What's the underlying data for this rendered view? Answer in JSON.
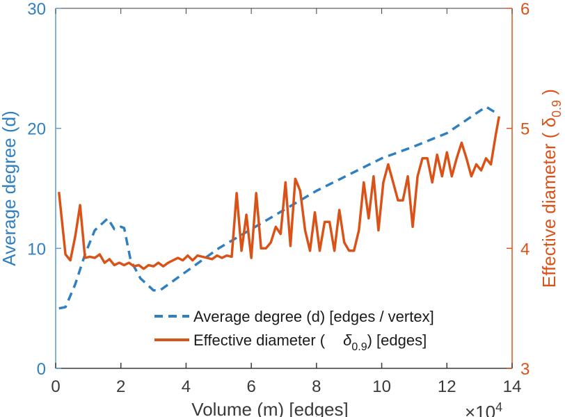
{
  "chart_data": {
    "type": "line",
    "x_multiplier_label": "×10",
    "x_multiplier_exponent": "4",
    "xlabel": "Volume (m) [edges]",
    "ylabel_left": "Average degree (d)",
    "ylabel_right": "Effective diameter ( δ",
    "ylabel_right_sub": "0.9",
    "ylabel_right_end": " )",
    "xlim": [
      0,
      14
    ],
    "ylim_left": [
      0,
      30
    ],
    "ylim_right": [
      3,
      6
    ],
    "x_ticks": [
      0,
      2,
      4,
      6,
      8,
      10,
      12,
      14
    ],
    "y_ticks_left": [
      0,
      10,
      20,
      30
    ],
    "y_ticks_right": [
      3,
      4,
      5,
      6
    ],
    "legend": [
      {
        "label": "Average degree (d) [edges / vertex]",
        "style": "dashed",
        "color": "#2f7fc1"
      },
      {
        "label_pre": "Effective diameter (",
        "label_sym": "δ",
        "label_sub": "0.9",
        "label_post": ") [edges]",
        "style": "solid",
        "color": "#d95319"
      }
    ],
    "series": [
      {
        "name": "Average degree (d) [edges / vertex]",
        "axis": "left",
        "color": "#2f7fc1",
        "style": "dashed",
        "x": [
          0.1,
          0.3,
          0.6,
          0.9,
          1.2,
          1.6,
          1.8,
          2.0,
          2.1,
          2.3,
          2.6,
          3.0,
          3.2,
          5.0,
          8.0,
          10.0,
          11.0,
          12.0,
          13.2,
          13.5
        ],
        "y": [
          5.0,
          5.1,
          7.0,
          9.5,
          11.5,
          12.5,
          11.6,
          11.8,
          11.7,
          9.0,
          7.5,
          6.5,
          6.5,
          10.0,
          14.8,
          17.5,
          18.5,
          19.6,
          21.8,
          21.3
        ]
      },
      {
        "name": "Effective diameter (δ0.9) [edges]",
        "axis": "right",
        "color": "#d95319",
        "style": "solid",
        "x": [
          0.1,
          0.3,
          0.45,
          0.6,
          0.75,
          0.9,
          1.05,
          1.2,
          1.35,
          1.5,
          1.65,
          1.8,
          1.95,
          2.1,
          2.25,
          2.4,
          2.55,
          2.7,
          2.85,
          3.0,
          3.15,
          3.3,
          3.45,
          3.6,
          3.75,
          3.9,
          4.05,
          4.2,
          4.35,
          4.5,
          4.65,
          4.8,
          4.95,
          5.1,
          5.25,
          5.4,
          5.55,
          5.7,
          5.85,
          6.0,
          6.15,
          6.3,
          6.45,
          6.6,
          6.75,
          6.9,
          7.05,
          7.2,
          7.35,
          7.5,
          7.65,
          7.8,
          7.95,
          8.1,
          8.25,
          8.4,
          8.55,
          8.7,
          8.85,
          9.0,
          9.15,
          9.3,
          9.45,
          9.6,
          9.75,
          9.9,
          10.05,
          10.2,
          10.35,
          10.5,
          10.65,
          10.8,
          10.95,
          11.1,
          11.25,
          11.4,
          11.55,
          11.7,
          11.85,
          12.0,
          12.15,
          12.3,
          12.45,
          12.6,
          12.75,
          12.9,
          13.05,
          13.2,
          13.35,
          13.5,
          13.6
        ],
        "y": [
          4.47,
          3.95,
          3.9,
          4.1,
          4.36,
          3.92,
          3.93,
          3.92,
          3.95,
          3.88,
          3.91,
          3.86,
          3.88,
          3.86,
          3.88,
          3.85,
          3.86,
          3.83,
          3.86,
          3.85,
          3.88,
          3.85,
          3.88,
          3.9,
          3.92,
          3.9,
          3.94,
          3.9,
          3.94,
          3.93,
          3.92,
          3.91,
          3.94,
          3.92,
          3.94,
          3.93,
          4.46,
          3.98,
          4.28,
          3.92,
          4.46,
          4.0,
          4.0,
          4.05,
          4.18,
          4.12,
          4.55,
          4.02,
          4.58,
          4.48,
          4.15,
          3.98,
          4.3,
          3.98,
          4.22,
          4.22,
          3.98,
          4.32,
          4.05,
          3.98,
          3.98,
          4.15,
          4.55,
          4.25,
          4.6,
          4.15,
          4.55,
          4.7,
          4.55,
          4.4,
          4.4,
          4.6,
          4.18,
          4.6,
          4.75,
          4.75,
          4.55,
          4.78,
          4.6,
          4.8,
          4.6,
          4.75,
          4.88,
          4.75,
          4.6,
          4.7,
          4.65,
          4.75,
          4.7,
          4.95,
          5.1
        ]
      }
    ]
  }
}
